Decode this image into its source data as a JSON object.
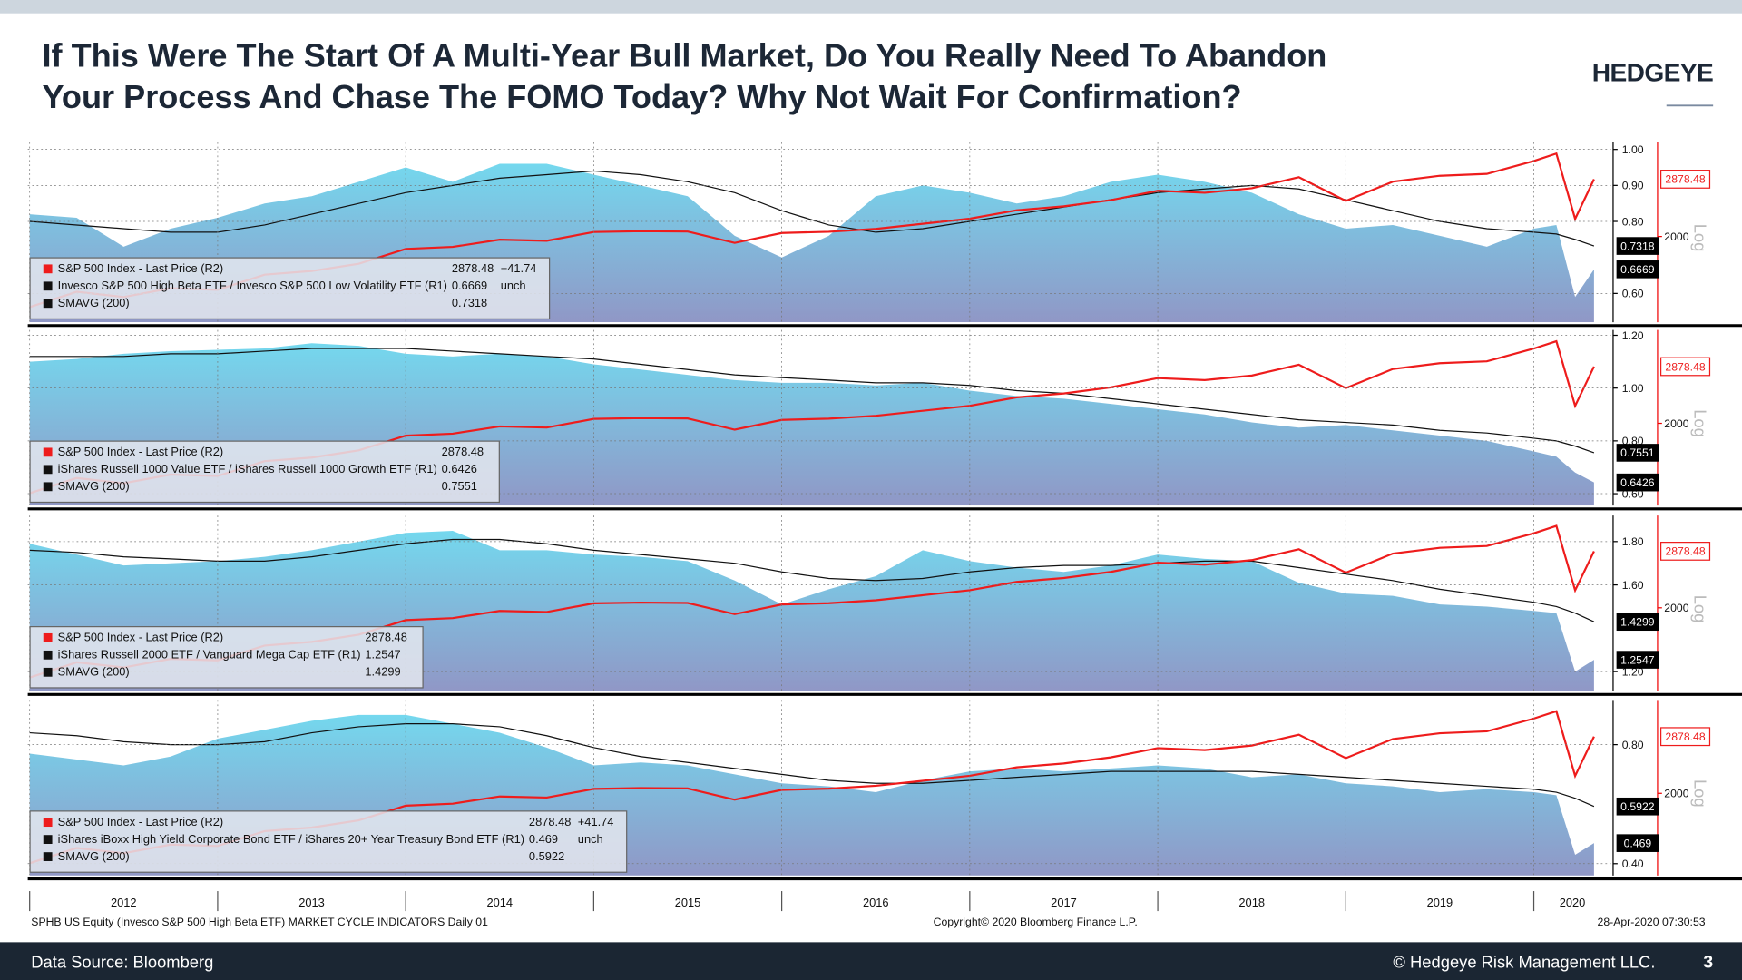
{
  "header": {
    "title": [
      "If This Were The Start Of A Multi-Year Bull Market, Do You Really Need To Abandon",
      "Your Process And Chase The FOMO Today? Why Not Wait For Confirmation?"
    ],
    "logo": "HEDGEYE"
  },
  "chart_data": [
    {
      "type": "line",
      "xlim": [
        2011.99,
        2020.41
      ],
      "x": [
        2012,
        2012.25,
        2012.5,
        2012.75,
        2013,
        2013.25,
        2013.5,
        2013.75,
        2014,
        2014.25,
        2014.5,
        2014.75,
        2015,
        2015.25,
        2015.5,
        2015.75,
        2016,
        2016.25,
        2016.5,
        2016.75,
        2017,
        2017.25,
        2017.5,
        2017.75,
        2018,
        2018.25,
        2018.5,
        2018.75,
        2019,
        2019.25,
        2019.5,
        2019.75,
        2020,
        2020.12,
        2020.22,
        2020.32
      ],
      "ylim": [
        0.52,
        1.02
      ],
      "yticks": [
        {
          "value": 1.0,
          "label": "1.00"
        },
        {
          "value": 0.9,
          "label": "0.90"
        },
        {
          "value": 0.8,
          "label": "0.80"
        },
        {
          "value": 0.6,
          "label": "0.60"
        }
      ],
      "y2lim": [
        1160,
        3640
      ],
      "y2ticks": [
        2000
      ],
      "y2log": true,
      "y2_scale_label": "Log",
      "grid": true,
      "series": [
        {
          "name": "Invesco S&P 500 High Beta ETF / Invesco S&P 500 Low Volatility ETF (R1)",
          "color": "#74d8ee",
          "legend_color": "#111111",
          "fill": "area",
          "change": "unch",
          "values": [
            0.82,
            0.81,
            0.73,
            0.78,
            0.81,
            0.85,
            0.87,
            0.91,
            0.95,
            0.91,
            0.96,
            0.96,
            0.93,
            0.9,
            0.87,
            0.76,
            0.7,
            0.76,
            0.87,
            0.9,
            0.88,
            0.85,
            0.87,
            0.91,
            0.93,
            0.91,
            0.88,
            0.82,
            0.78,
            0.79,
            0.76,
            0.73,
            0.78,
            0.79,
            0.59,
            0.6669
          ]
        },
        {
          "name": "SMAVG (200)",
          "color": "#111111",
          "values": [
            0.8,
            0.79,
            0.78,
            0.77,
            0.77,
            0.79,
            0.82,
            0.85,
            0.88,
            0.9,
            0.92,
            0.93,
            0.94,
            0.93,
            0.91,
            0.88,
            0.83,
            0.79,
            0.77,
            0.78,
            0.8,
            0.82,
            0.84,
            0.86,
            0.88,
            0.89,
            0.9,
            0.89,
            0.86,
            0.83,
            0.8,
            0.78,
            0.77,
            0.765,
            0.75,
            0.7318
          ]
        },
        {
          "name": "S&P 500 Index - Last Price (R2)",
          "color": "#ee1c1c",
          "axis": "y2",
          "change": "+41.74",
          "values": [
            1277,
            1408,
            1362,
            1440,
            1426,
            1569,
            1606,
            1682,
            1848,
            1872,
            1960,
            1946,
            2058,
            2068,
            2063,
            1920,
            2044,
            2060,
            2099,
            2168,
            2239,
            2363,
            2423,
            2519,
            2674,
            2640,
            2718,
            2914,
            2507,
            2834,
            2942,
            2977,
            3231,
            3386,
            2237,
            2878.48
          ]
        }
      ]
    },
    {
      "type": "line",
      "xlim": [
        2011.99,
        2020.41
      ],
      "x": [
        2012,
        2012.25,
        2012.5,
        2012.75,
        2013,
        2013.25,
        2013.5,
        2013.75,
        2014,
        2014.25,
        2014.5,
        2014.75,
        2015,
        2015.25,
        2015.5,
        2015.75,
        2016,
        2016.25,
        2016.5,
        2016.75,
        2017,
        2017.25,
        2017.5,
        2017.75,
        2018,
        2018.25,
        2018.5,
        2018.75,
        2019,
        2019.25,
        2019.5,
        2019.75,
        2020,
        2020.12,
        2020.22,
        2020.32
      ],
      "ylim": [
        0.555,
        1.22
      ],
      "yticks": [
        {
          "value": 1.2,
          "label": "1.20"
        },
        {
          "value": 1.0,
          "label": "1.00"
        },
        {
          "value": 0.8,
          "label": "0.80"
        },
        {
          "value": 0.6,
          "label": "0.60"
        }
      ],
      "y2lim": [
        1180,
        3640
      ],
      "y2ticks": [
        2000
      ],
      "y2log": true,
      "y2_scale_label": "Log",
      "grid": true,
      "series": [
        {
          "name": "iShares Russell 1000 Value ETF / iShares Russell 1000 Growth ETF (R1)",
          "color": "#74d8ee",
          "legend_color": "#111111",
          "fill": "area",
          "values": [
            1.1,
            1.11,
            1.13,
            1.14,
            1.145,
            1.15,
            1.17,
            1.16,
            1.13,
            1.12,
            1.13,
            1.12,
            1.09,
            1.07,
            1.05,
            1.03,
            1.02,
            1.02,
            1.01,
            1.02,
            0.99,
            0.97,
            0.96,
            0.94,
            0.92,
            0.9,
            0.87,
            0.85,
            0.86,
            0.84,
            0.82,
            0.8,
            0.76,
            0.74,
            0.68,
            0.6426
          ]
        },
        {
          "name": "SMAVG (200)",
          "color": "#111111",
          "values": [
            1.12,
            1.12,
            1.12,
            1.13,
            1.13,
            1.14,
            1.15,
            1.15,
            1.15,
            1.14,
            1.13,
            1.12,
            1.11,
            1.09,
            1.07,
            1.05,
            1.04,
            1.03,
            1.02,
            1.02,
            1.01,
            0.99,
            0.98,
            0.96,
            0.94,
            0.92,
            0.9,
            0.88,
            0.87,
            0.86,
            0.84,
            0.83,
            0.81,
            0.8,
            0.78,
            0.7551
          ]
        },
        {
          "name": "S&P 500 Index - Last Price (R2)",
          "color": "#ee1c1c",
          "axis": "y2",
          "values": [
            1277,
            1408,
            1362,
            1440,
            1426,
            1569,
            1606,
            1682,
            1848,
            1872,
            1960,
            1946,
            2058,
            2068,
            2063,
            1920,
            2044,
            2060,
            2099,
            2168,
            2239,
            2363,
            2423,
            2519,
            2674,
            2640,
            2718,
            2914,
            2507,
            2834,
            2942,
            2977,
            3231,
            3386,
            2237,
            2878.48
          ]
        }
      ]
    },
    {
      "type": "line",
      "xlim": [
        2011.99,
        2020.41
      ],
      "x": [
        2012,
        2012.25,
        2012.5,
        2012.75,
        2013,
        2013.25,
        2013.5,
        2013.75,
        2014,
        2014.25,
        2014.5,
        2014.75,
        2015,
        2015.25,
        2015.5,
        2015.75,
        2016,
        2016.25,
        2016.5,
        2016.75,
        2017,
        2017.25,
        2017.5,
        2017.75,
        2018,
        2018.25,
        2018.5,
        2018.75,
        2019,
        2019.25,
        2019.5,
        2019.75,
        2020,
        2020.12,
        2020.22,
        2020.32
      ],
      "ylim": [
        1.11,
        1.92
      ],
      "yticks": [
        {
          "value": 1.8,
          "label": "1.80"
        },
        {
          "value": 1.6,
          "label": "1.60"
        },
        {
          "value": 1.2,
          "label": "1.20"
        }
      ],
      "y2lim": [
        1170,
        3620
      ],
      "y2ticks": [
        2000
      ],
      "y2log": true,
      "y2_scale_label": "Log",
      "grid": true,
      "series": [
        {
          "name": "iShares Russell 2000 ETF / Vanguard Mega Cap ETF (R1)",
          "color": "#74d8ee",
          "legend_color": "#111111",
          "fill": "area",
          "values": [
            1.79,
            1.74,
            1.69,
            1.7,
            1.71,
            1.73,
            1.76,
            1.8,
            1.84,
            1.85,
            1.76,
            1.76,
            1.74,
            1.73,
            1.71,
            1.62,
            1.51,
            1.58,
            1.64,
            1.76,
            1.71,
            1.68,
            1.66,
            1.69,
            1.74,
            1.72,
            1.71,
            1.61,
            1.56,
            1.55,
            1.51,
            1.5,
            1.48,
            1.47,
            1.2,
            1.2547
          ]
        },
        {
          "name": "SMAVG (200)",
          "color": "#111111",
          "values": [
            1.76,
            1.75,
            1.73,
            1.72,
            1.71,
            1.71,
            1.73,
            1.76,
            1.79,
            1.81,
            1.81,
            1.79,
            1.76,
            1.74,
            1.72,
            1.7,
            1.66,
            1.63,
            1.62,
            1.63,
            1.66,
            1.68,
            1.69,
            1.69,
            1.7,
            1.71,
            1.71,
            1.68,
            1.65,
            1.62,
            1.58,
            1.55,
            1.52,
            1.5,
            1.47,
            1.4299
          ]
        },
        {
          "name": "S&P 500 Index - Last Price (R2)",
          "color": "#ee1c1c",
          "axis": "y2",
          "values": [
            1277,
            1408,
            1362,
            1440,
            1426,
            1569,
            1606,
            1682,
            1848,
            1872,
            1960,
            1946,
            2058,
            2068,
            2063,
            1920,
            2044,
            2060,
            2099,
            2168,
            2239,
            2363,
            2423,
            2519,
            2674,
            2640,
            2718,
            2914,
            2507,
            2834,
            2942,
            2977,
            3231,
            3386,
            2237,
            2878.48
          ]
        }
      ]
    },
    {
      "type": "line",
      "xlim": [
        2011.99,
        2020.41
      ],
      "x": [
        2012,
        2012.25,
        2012.5,
        2012.75,
        2013,
        2013.25,
        2013.5,
        2013.75,
        2014,
        2014.25,
        2014.5,
        2014.75,
        2015,
        2015.25,
        2015.5,
        2015.75,
        2016,
        2016.25,
        2016.5,
        2016.75,
        2017,
        2017.25,
        2017.5,
        2017.75,
        2018,
        2018.25,
        2018.5,
        2018.75,
        2019,
        2019.25,
        2019.5,
        2019.75,
        2020,
        2020.12,
        2020.22,
        2020.32
      ],
      "xticks": [
        2012,
        2013,
        2014,
        2015,
        2016,
        2017,
        2018,
        2019,
        2020
      ],
      "ylim": [
        0.36,
        0.95
      ],
      "yticks": [
        {
          "value": 0.8,
          "label": "0.80"
        },
        {
          "value": 0.4,
          "label": "0.40"
        }
      ],
      "y2lim": [
        1180,
        3640
      ],
      "y2ticks": [
        2000
      ],
      "y2log": true,
      "y2_scale_label": "Log",
      "grid": true,
      "series": [
        {
          "name": "iShares iBoxx High Yield Corporate Bond ETF / iShares 20+ Year Treasury Bond ETF (R1)",
          "color": "#74d8ee",
          "legend_color": "#111111",
          "fill": "area",
          "change": "unch",
          "values": [
            0.77,
            0.75,
            0.73,
            0.76,
            0.82,
            0.85,
            0.88,
            0.9,
            0.9,
            0.87,
            0.84,
            0.79,
            0.73,
            0.74,
            0.73,
            0.7,
            0.67,
            0.66,
            0.64,
            0.68,
            0.71,
            0.72,
            0.71,
            0.72,
            0.73,
            0.72,
            0.69,
            0.7,
            0.67,
            0.66,
            0.64,
            0.65,
            0.64,
            0.63,
            0.43,
            0.469
          ]
        },
        {
          "name": "SMAVG (200)",
          "color": "#111111",
          "values": [
            0.84,
            0.83,
            0.81,
            0.8,
            0.8,
            0.81,
            0.84,
            0.86,
            0.87,
            0.87,
            0.86,
            0.83,
            0.79,
            0.76,
            0.74,
            0.72,
            0.7,
            0.68,
            0.67,
            0.67,
            0.68,
            0.69,
            0.7,
            0.71,
            0.71,
            0.71,
            0.71,
            0.7,
            0.69,
            0.68,
            0.67,
            0.66,
            0.65,
            0.64,
            0.62,
            0.5922
          ]
        },
        {
          "name": "S&P 500 Index - Last Price (R2)",
          "color": "#ee1c1c",
          "axis": "y2",
          "change": "+41.74",
          "values": [
            1277,
            1408,
            1362,
            1440,
            1426,
            1569,
            1606,
            1682,
            1848,
            1872,
            1960,
            1946,
            2058,
            2068,
            2063,
            1920,
            2044,
            2060,
            2099,
            2168,
            2239,
            2363,
            2423,
            2519,
            2674,
            2640,
            2718,
            2914,
            2507,
            2834,
            2942,
            2977,
            3231,
            3386,
            2237,
            2878.48
          ]
        }
      ]
    }
  ],
  "source_bar": {
    "left": "SPHB US Equity (Invesco S&P 500 High Beta ETF) MARKET CYCLE INDICATORS  Daily 01",
    "center": "Copyright© 2020 Bloomberg Finance L.P.",
    "right": "28-Apr-2020 07:30:53"
  },
  "footer": {
    "source": "Data Source: Bloomberg",
    "copyright": "© Hedgeye Risk Management LLC.",
    "page": "3"
  }
}
